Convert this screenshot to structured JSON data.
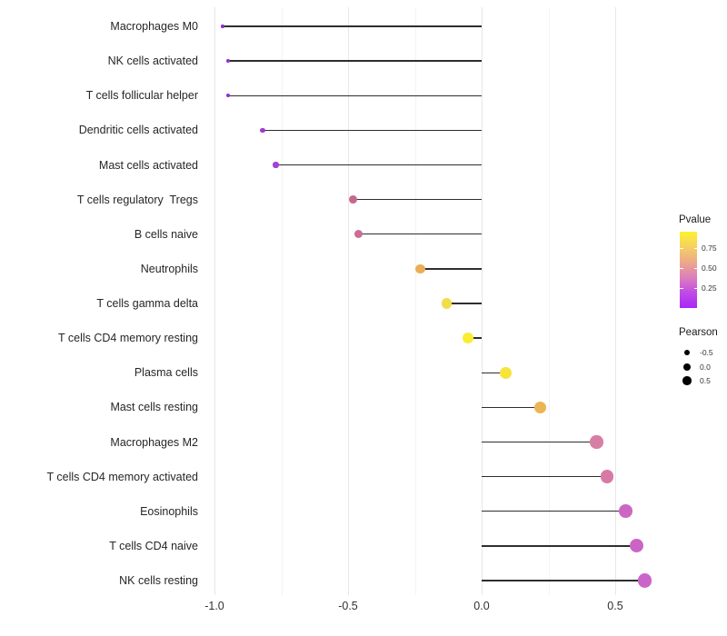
{
  "chart_data": {
    "type": "lollipop",
    "title": "",
    "xlabel": "",
    "ylabel": "",
    "baseline": 0,
    "x_axis": {
      "range": [
        -1.05,
        0.68
      ],
      "ticks": [
        {
          "value": -1.0,
          "label": "-1.0"
        },
        {
          "value": -0.5,
          "label": "-0.5"
        },
        {
          "value": 0.0,
          "label": "0.0"
        },
        {
          "value": 0.5,
          "label": "0.5"
        }
      ],
      "minor_gridlines": [
        -0.75,
        -0.25,
        0.25
      ]
    },
    "points": [
      {
        "label": "Macrophages M0",
        "pearson": -0.97,
        "color": "#8E2BD0"
      },
      {
        "label": "NK cells activated",
        "pearson": -0.95,
        "color": "#9130D2"
      },
      {
        "label": "T cells follicular helper",
        "pearson": -0.95,
        "color": "#9130D2"
      },
      {
        "label": "Dendritic cells activated",
        "pearson": -0.82,
        "color": "#9D3AD5"
      },
      {
        "label": "Mast cells activated",
        "pearson": -0.77,
        "color": "#A342D3"
      },
      {
        "label": "T cells regulatory  Tregs",
        "pearson": -0.48,
        "color": "#C5688E"
      },
      {
        "label": "B cells naive",
        "pearson": -0.46,
        "color": "#CA6E96"
      },
      {
        "label": "Neutrophils",
        "pearson": -0.23,
        "color": "#EBAD56"
      },
      {
        "label": "T cells gamma delta",
        "pearson": -0.13,
        "color": "#F2DC49"
      },
      {
        "label": "T cells CD4 memory resting",
        "pearson": -0.05,
        "color": "#F8ED34"
      },
      {
        "label": "Plasma cells",
        "pearson": 0.09,
        "color": "#F6E43C"
      },
      {
        "label": "Mast cells resting",
        "pearson": 0.22,
        "color": "#EDB453"
      },
      {
        "label": "Macrophages M2",
        "pearson": 0.43,
        "color": "#D87EA4"
      },
      {
        "label": "T cells CD4 memory activated",
        "pearson": 0.47,
        "color": "#D779A6"
      },
      {
        "label": "Eosinophils",
        "pearson": 0.54,
        "color": "#CB67C3"
      },
      {
        "label": "T cells CD4 naive",
        "pearson": 0.58,
        "color": "#CA65C6"
      },
      {
        "label": "NK cells resting",
        "pearson": 0.61,
        "color": "#CB64C9"
      }
    ],
    "legend": {
      "pvalue": {
        "title": "Pvalue",
        "range": [
          0,
          0.95
        ],
        "ticks": [
          {
            "value": 0.75,
            "label": "0.75"
          },
          {
            "value": 0.5,
            "label": "0.50"
          },
          {
            "value": 0.25,
            "label": "0.25"
          }
        ],
        "gradient": [
          "#FCF22E",
          "#F5D063",
          "#EDA989",
          "#DC7FBC",
          "#C04BE6",
          "#A826F8"
        ]
      },
      "pearson": {
        "title": "Pearson",
        "color": "#000000",
        "entries": [
          {
            "label": "-0.5",
            "diameter": 6.5
          },
          {
            "label": "0.0",
            "diameter": 8
          },
          {
            "label": "0.5",
            "diameter": 9.5
          }
        ]
      }
    },
    "style": {
      "stem_color": "#2e2e2e",
      "major_grid_color": "#e7e7e7",
      "minor_grid_color": "#f3f3f3",
      "axis_text_color": "#262626"
    }
  }
}
